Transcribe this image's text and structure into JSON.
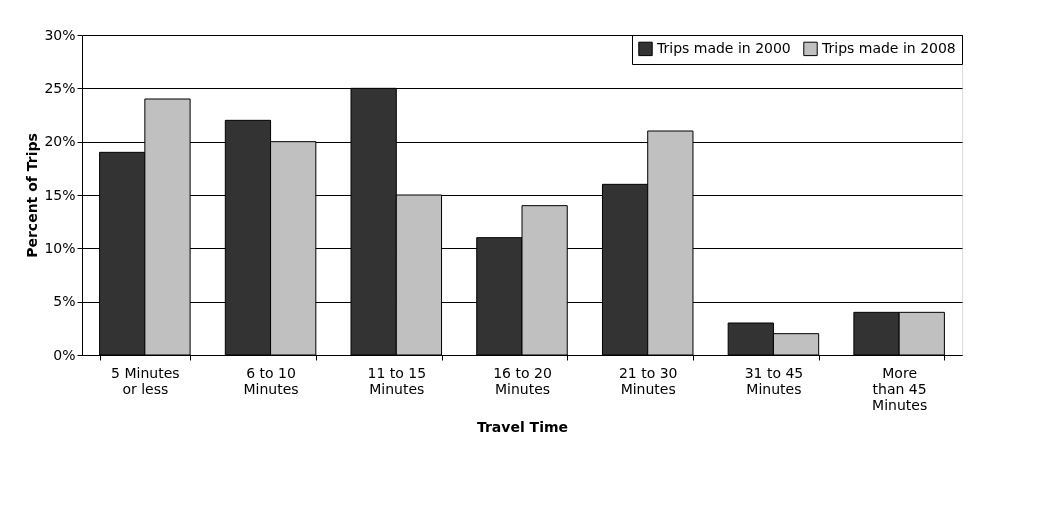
{
  "chart_data": {
    "type": "bar",
    "xlabel": "Travel Time",
    "ylabel": "Percent of Trips",
    "categories": [
      "5 Minutes\nor less",
      "6 to 10\nMinutes",
      "11 to 15\nMinutes",
      "16 to 20\nMinutes",
      "21 to 30\nMinutes",
      "31 to 45\nMinutes",
      "More\nthan 45\nMinutes"
    ],
    "series": [
      {
        "name": "Trips made in 2000",
        "color": "#333333",
        "values": [
          19,
          22,
          25,
          11,
          16,
          3,
          4
        ]
      },
      {
        "name": "Trips made in 2008",
        "color": "#c0c0c0",
        "values": [
          24,
          20,
          15,
          14,
          21,
          2,
          4
        ]
      }
    ],
    "ylim": [
      0,
      30
    ],
    "yticks": [
      {
        "value": 0,
        "label": "0%"
      },
      {
        "value": 5,
        "label": "5%"
      },
      {
        "value": 10,
        "label": "10%"
      },
      {
        "value": 15,
        "label": "15%"
      },
      {
        "value": 20,
        "label": "20%"
      },
      {
        "value": 25,
        "label": "25%"
      },
      {
        "value": 30,
        "label": "30%"
      }
    ],
    "grid": "y",
    "legend": "top right"
  }
}
